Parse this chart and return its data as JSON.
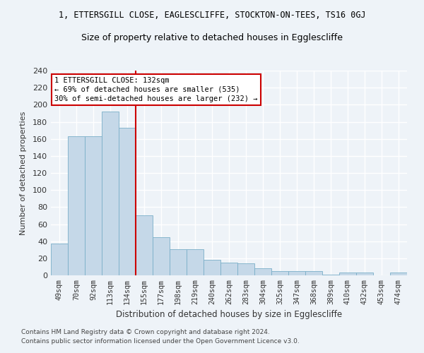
{
  "title": "1, ETTERSGILL CLOSE, EAGLESCLIFFE, STOCKTON-ON-TEES, TS16 0GJ",
  "subtitle": "Size of property relative to detached houses in Egglescliffe",
  "xlabel": "Distribution of detached houses by size in Egglescliffe",
  "ylabel": "Number of detached properties",
  "footer_line1": "Contains HM Land Registry data © Crown copyright and database right 2024.",
  "footer_line2": "Contains public sector information licensed under the Open Government Licence v3.0.",
  "bar_labels": [
    "49sqm",
    "70sqm",
    "92sqm",
    "113sqm",
    "134sqm",
    "155sqm",
    "177sqm",
    "198sqm",
    "219sqm",
    "240sqm",
    "262sqm",
    "283sqm",
    "304sqm",
    "325sqm",
    "347sqm",
    "368sqm",
    "389sqm",
    "410sqm",
    "432sqm",
    "453sqm",
    "474sqm"
  ],
  "bar_values": [
    37,
    163,
    163,
    192,
    173,
    70,
    45,
    31,
    31,
    18,
    15,
    14,
    8,
    5,
    5,
    5,
    1,
    3,
    3,
    0,
    3
  ],
  "bar_color": "#c5d8e8",
  "bar_edge_color": "#7aafc8",
  "annotation_title": "1 ETTERSGILL CLOSE: 132sqm",
  "annotation_line2": "← 69% of detached houses are smaller (535)",
  "annotation_line3": "30% of semi-detached houses are larger (232) →",
  "redline_x": 4.5,
  "ylim": [
    0,
    240
  ],
  "yticks": [
    0,
    20,
    40,
    60,
    80,
    100,
    120,
    140,
    160,
    180,
    200,
    220,
    240
  ],
  "background_color": "#eef3f8",
  "plot_bg_color": "#eef3f8",
  "grid_color": "#ffffff",
  "annotation_box_color": "#ffffff",
  "annotation_box_edge": "#cc0000",
  "redline_color": "#cc0000",
  "title_color": "#000000",
  "axis_color": "#333333"
}
